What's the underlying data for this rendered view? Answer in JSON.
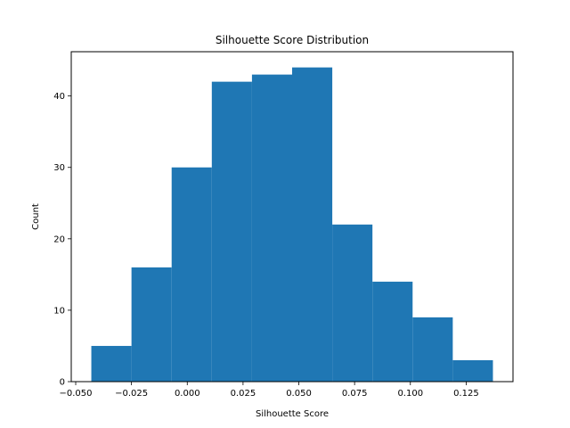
{
  "chart_data": {
    "type": "bar",
    "title": "Silhouette Score Distribution",
    "xlabel": "Silhouette Score",
    "ylabel": "Count",
    "bins": [
      {
        "start": -0.043,
        "end": -0.025,
        "count": 5
      },
      {
        "start": -0.025,
        "end": -0.007,
        "count": 16
      },
      {
        "start": -0.007,
        "end": 0.011,
        "count": 30
      },
      {
        "start": 0.011,
        "end": 0.029,
        "count": 42
      },
      {
        "start": 0.029,
        "end": 0.047,
        "count": 43
      },
      {
        "start": 0.047,
        "end": 0.065,
        "count": 44
      },
      {
        "start": 0.065,
        "end": 0.083,
        "count": 22
      },
      {
        "start": 0.083,
        "end": 0.101,
        "count": 14
      },
      {
        "start": 0.101,
        "end": 0.119,
        "count": 9
      },
      {
        "start": 0.119,
        "end": 0.137,
        "count": 3
      }
    ],
    "xlim": [
      -0.052,
      0.146
    ],
    "ylim": [
      0,
      46.2
    ],
    "xticks": [
      {
        "value": -0.05,
        "label": "−0.050"
      },
      {
        "value": -0.025,
        "label": "−0.025"
      },
      {
        "value": 0.0,
        "label": "0.000"
      },
      {
        "value": 0.025,
        "label": "0.025"
      },
      {
        "value": 0.05,
        "label": "0.050"
      },
      {
        "value": 0.075,
        "label": "0.075"
      },
      {
        "value": 0.1,
        "label": "0.100"
      },
      {
        "value": 0.125,
        "label": "0.125"
      }
    ],
    "yticks": [
      {
        "value": 0,
        "label": "0"
      },
      {
        "value": 10,
        "label": "10"
      },
      {
        "value": 20,
        "label": "20"
      },
      {
        "value": 30,
        "label": "30"
      },
      {
        "value": 40,
        "label": "40"
      }
    ],
    "bar_color": "#1f77b4",
    "grid": false,
    "legend": "none"
  }
}
